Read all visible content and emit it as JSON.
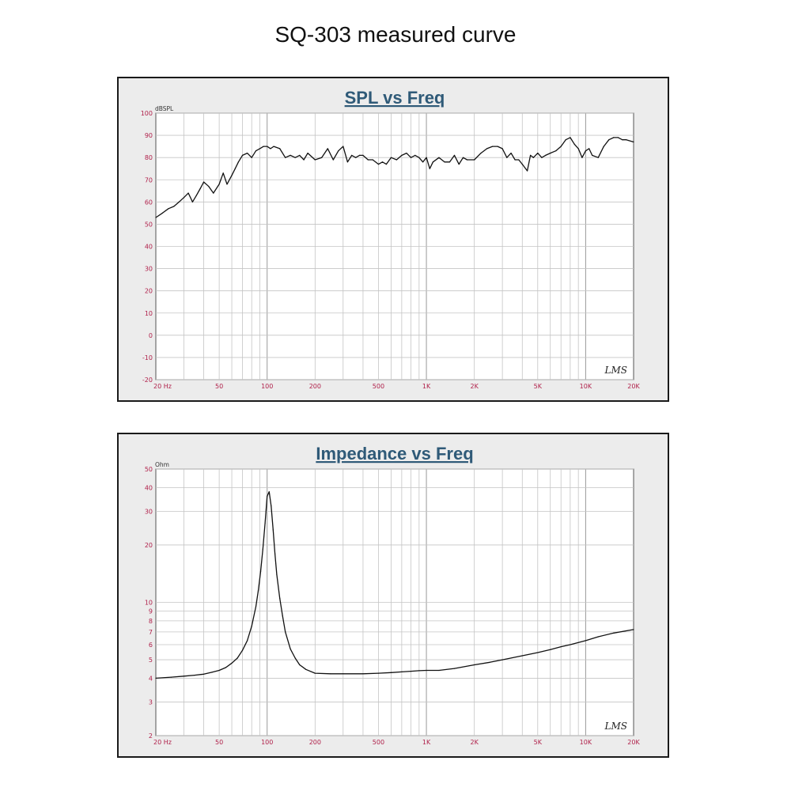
{
  "page_title": "SQ-303 measured curve",
  "chart_data": [
    {
      "type": "line",
      "title": "SPL vs Freq",
      "ylabel": "dBSPL",
      "xlabel": "",
      "x_scale": "log",
      "xlim": [
        20,
        20000
      ],
      "ylim": [
        -20,
        100
      ],
      "y_ticks": [
        100,
        90,
        80,
        70,
        60,
        50,
        40,
        30,
        20,
        10,
        0,
        -10,
        -20
      ],
      "x_ticks": [
        {
          "value": 20,
          "label": "20  Hz"
        },
        {
          "value": 50,
          "label": "50"
        },
        {
          "value": 100,
          "label": "100"
        },
        {
          "value": 200,
          "label": "200"
        },
        {
          "value": 500,
          "label": "500"
        },
        {
          "value": 1000,
          "label": "1K"
        },
        {
          "value": 2000,
          "label": "2K"
        },
        {
          "value": 5000,
          "label": "5K"
        },
        {
          "value": 10000,
          "label": "10K"
        },
        {
          "value": 20000,
          "label": "20K"
        }
      ],
      "watermark": "LMS",
      "series": [
        {
          "x": [
            20,
            22,
            24,
            26,
            28,
            30,
            32,
            34,
            36,
            38,
            40,
            43,
            46,
            50,
            53,
            56,
            60,
            63,
            66,
            70,
            75,
            80,
            85,
            90,
            95,
            100,
            105,
            110,
            120,
            130,
            140,
            150,
            160,
            170,
            180,
            200,
            220,
            240,
            260,
            280,
            300,
            320,
            340,
            360,
            380,
            400,
            430,
            460,
            500,
            530,
            560,
            600,
            650,
            700,
            750,
            800,
            850,
            900,
            950,
            1000,
            1050,
            1100,
            1200,
            1300,
            1400,
            1500,
            1600,
            1700,
            1800,
            2000,
            2200,
            2400,
            2600,
            2800,
            3000,
            3200,
            3400,
            3600,
            3800,
            4000,
            4300,
            4500,
            4700,
            5000,
            5300,
            5600,
            6000,
            6500,
            7000,
            7500,
            8000,
            8500,
            9000,
            9500,
            10000,
            10500,
            11000,
            12000,
            13000,
            14000,
            15000,
            16000,
            17000,
            18000,
            20000
          ],
          "y": [
            53,
            55,
            57,
            58,
            60,
            62,
            64,
            60,
            63,
            66,
            69,
            67,
            64,
            68,
            73,
            68,
            72,
            75,
            78,
            81,
            82,
            80,
            83,
            84,
            85,
            85,
            84,
            85,
            84,
            80,
            81,
            80,
            81,
            79,
            82,
            79,
            80,
            84,
            79,
            83,
            85,
            78,
            81,
            80,
            81,
            81,
            79,
            79,
            77,
            78,
            77,
            80,
            79,
            81,
            82,
            80,
            81,
            80,
            78,
            80,
            75,
            78,
            80,
            78,
            78,
            81,
            77,
            80,
            79,
            79,
            82,
            84,
            85,
            85,
            84,
            80,
            82,
            79,
            79,
            77,
            74,
            81,
            80,
            82,
            80,
            81,
            82,
            83,
            85,
            88,
            89,
            86,
            84,
            80,
            83,
            84,
            81,
            80,
            85,
            88,
            89,
            89,
            88,
            88,
            87
          ]
        }
      ]
    },
    {
      "type": "line",
      "title": "Impedance vs Freq",
      "ylabel": "Ohm",
      "xlabel": "",
      "x_scale": "log",
      "y_scale": "log",
      "xlim": [
        20,
        20000
      ],
      "ylim": [
        2,
        50
      ],
      "y_ticks": [
        {
          "value": 50,
          "label": "50"
        },
        {
          "value": 40,
          "label": "40"
        },
        {
          "value": 30,
          "label": "30"
        },
        {
          "value": 20,
          "label": "20"
        },
        {
          "value": 10,
          "label": "10"
        },
        {
          "value": 9,
          "label": "9"
        },
        {
          "value": 8,
          "label": "8"
        },
        {
          "value": 7,
          "label": "7"
        },
        {
          "value": 6,
          "label": "6"
        },
        {
          "value": 5,
          "label": "5"
        },
        {
          "value": 4,
          "label": "4"
        },
        {
          "value": 3,
          "label": "3"
        },
        {
          "value": 2,
          "label": "2"
        }
      ],
      "x_ticks": [
        {
          "value": 20,
          "label": "20  Hz"
        },
        {
          "value": 50,
          "label": "50"
        },
        {
          "value": 100,
          "label": "100"
        },
        {
          "value": 200,
          "label": "200"
        },
        {
          "value": 500,
          "label": "500"
        },
        {
          "value": 1000,
          "label": "1K"
        },
        {
          "value": 2000,
          "label": "2K"
        },
        {
          "value": 5000,
          "label": "5K"
        },
        {
          "value": 10000,
          "label": "10K"
        },
        {
          "value": 20000,
          "label": "20K"
        }
      ],
      "watermark": "LMS",
      "series": [
        {
          "x": [
            20,
            25,
            30,
            35,
            40,
            45,
            50,
            55,
            60,
            65,
            70,
            75,
            80,
            85,
            88,
            91,
            94,
            97,
            100,
            103,
            106,
            109,
            112,
            115,
            120,
            125,
            130,
            140,
            150,
            160,
            175,
            200,
            250,
            300,
            400,
            500,
            600,
            700,
            800,
            900,
            1000,
            1200,
            1500,
            2000,
            2500,
            3000,
            4000,
            5000,
            6000,
            7000,
            8000,
            10000,
            12000,
            15000,
            20000
          ],
          "y": [
            4.0,
            4.05,
            4.1,
            4.15,
            4.2,
            4.3,
            4.4,
            4.55,
            4.8,
            5.1,
            5.6,
            6.3,
            7.5,
            9.5,
            11.5,
            14.5,
            19,
            26,
            36,
            38,
            32,
            24,
            18,
            14,
            10.5,
            8.5,
            7.0,
            5.7,
            5.1,
            4.7,
            4.45,
            4.25,
            4.22,
            4.22,
            4.22,
            4.25,
            4.28,
            4.32,
            4.35,
            4.38,
            4.4,
            4.4,
            4.5,
            4.7,
            4.85,
            5.0,
            5.25,
            5.45,
            5.65,
            5.85,
            6.0,
            6.3,
            6.6,
            6.9,
            7.2
          ]
        }
      ]
    }
  ]
}
